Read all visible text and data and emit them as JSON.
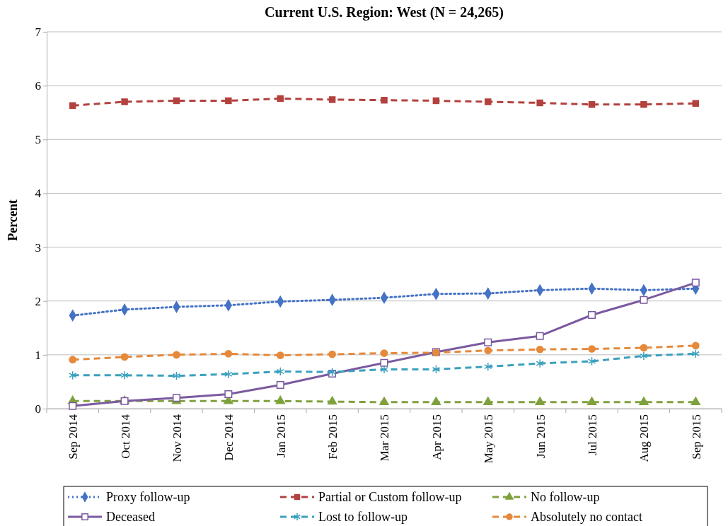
{
  "chart_data": {
    "type": "line",
    "title": "Current U.S. Region: West (N = 24,265)",
    "ylabel": "Percent",
    "categories": [
      "Sep 2014",
      "Oct 2014",
      "Nov 2014",
      "Dec 2014",
      "Jan 2015",
      "Feb 2015",
      "Mar 2015",
      "Apr 2015",
      "May 2015",
      "Jun 2015",
      "Jul 2015",
      "Aug 2015",
      "Sep 2015"
    ],
    "ylim": [
      0,
      7
    ],
    "yticks": [
      0,
      1,
      2,
      3,
      4,
      5,
      6,
      7
    ],
    "grid": "y",
    "legend": "bottom",
    "series": [
      {
        "name": "Proxy follow-up",
        "color": "#4472c4",
        "marker": "diamond",
        "line_style": "dotted",
        "values": [
          1.73,
          1.84,
          1.89,
          1.92,
          1.99,
          2.02,
          2.06,
          2.13,
          2.14,
          2.2,
          2.23,
          2.2,
          2.23
        ]
      },
      {
        "name": "Partial or Custom follow-up",
        "color": "#b3413e",
        "marker": "square",
        "line_style": "dashed",
        "values": [
          5.63,
          5.7,
          5.72,
          5.72,
          5.76,
          5.74,
          5.73,
          5.72,
          5.7,
          5.68,
          5.65,
          5.65,
          5.67
        ]
      },
      {
        "name": "No follow-up",
        "color": "#7fa13d",
        "marker": "triangle",
        "line_style": "dashed",
        "values": [
          0.14,
          0.14,
          0.14,
          0.14,
          0.14,
          0.13,
          0.12,
          0.12,
          0.12,
          0.12,
          0.12,
          0.12,
          0.12
        ]
      },
      {
        "name": "Deceased",
        "color": "#7b5aa0",
        "marker": "square",
        "line_style": "solid",
        "values": [
          0.05,
          0.14,
          0.2,
          0.27,
          0.44,
          0.65,
          0.85,
          1.05,
          1.23,
          1.35,
          1.74,
          2.02,
          2.34
        ]
      },
      {
        "name": "Lost to follow-up",
        "color": "#3aa0bd",
        "marker": "cross",
        "line_style": "dashed",
        "values": [
          0.62,
          0.62,
          0.61,
          0.64,
          0.69,
          0.68,
          0.73,
          0.73,
          0.78,
          0.84,
          0.88,
          0.98,
          1.02
        ]
      },
      {
        "name": "Absolutely no contact",
        "color": "#e5893a",
        "marker": "circle",
        "line_style": "dashed",
        "values": [
          0.91,
          0.96,
          1.0,
          1.02,
          0.99,
          1.01,
          1.03,
          1.04,
          1.08,
          1.1,
          1.11,
          1.13,
          1.17
        ]
      }
    ]
  }
}
